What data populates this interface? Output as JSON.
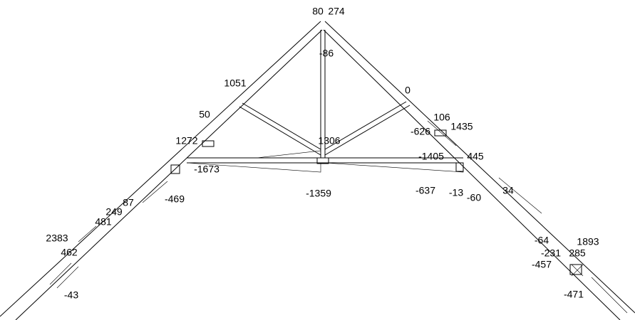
{
  "labels": [
    {
      "text": "80"
    },
    {
      "text": "274"
    },
    {
      "text": "-86"
    },
    {
      "text": "1051"
    },
    {
      "text": "0"
    },
    {
      "text": "1306"
    },
    {
      "text": "-626"
    },
    {
      "text": "106"
    },
    {
      "text": "1435"
    },
    {
      "text": "1272"
    },
    {
      "text": "-1405"
    },
    {
      "text": "445"
    },
    {
      "text": "-1673"
    },
    {
      "text": "-1359"
    },
    {
      "text": "-637"
    },
    {
      "text": "-13"
    },
    {
      "text": "-60"
    },
    {
      "text": "34"
    },
    {
      "text": "-469"
    },
    {
      "text": "249"
    },
    {
      "text": "87"
    },
    {
      "text": "481"
    },
    {
      "text": "2383"
    },
    {
      "text": "462"
    },
    {
      "text": "-43"
    },
    {
      "text": "1893"
    },
    {
      "text": "-64"
    },
    {
      "text": "-231"
    },
    {
      "text": "285"
    },
    {
      "text": "-457"
    },
    {
      "text": "-471"
    },
    {
      "text": "50"
    }
  ]
}
